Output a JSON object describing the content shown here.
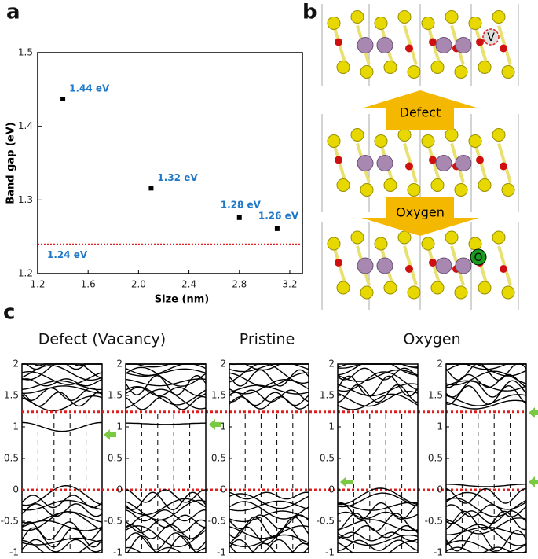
{
  "labels": {
    "a": "a",
    "b": "b",
    "c": "c"
  },
  "structures": {
    "defect": "Defect",
    "oxygen": "Oxygen",
    "vacancy": "V",
    "oxygen_atom": "O"
  },
  "band_titles": [
    "Defect (Vacancy)",
    "Pristine",
    "Oxygen"
  ],
  "band_reference_levels": [
    1.24,
    0
  ],
  "chart_data": [
    {
      "type": "scatter",
      "x_label": "Size (nm)",
      "y_label": "Band gap (eV)",
      "x": [
        1.4,
        2.1,
        2.8,
        3.1
      ],
      "values": [
        1.437,
        1.316,
        1.276,
        1.261
      ],
      "value_labels": [
        "1.44 eV",
        "1.32 eV",
        "1.28 eV",
        "1.26 eV"
      ],
      "color": "#000000",
      "reference_line": {
        "value": 1.24,
        "label": "1.24 eV",
        "color": "#e02020"
      },
      "xlim": [
        1.2,
        3.3
      ],
      "ylim": [
        1.2,
        1.5
      ],
      "xticks": [
        1.2,
        1.6,
        {
          "value": 2,
          "label": "2.0"
        },
        2.4,
        2.8,
        3.2
      ],
      "yticks": [
        1.2,
        1.3,
        1.4,
        1.5
      ]
    },
    {
      "type": "band",
      "ylim": [
        -1,
        2
      ],
      "yticks": [
        2,
        1.5,
        1,
        0.5,
        0,
        -0.5,
        -1
      ]
    },
    {
      "type": "band",
      "ylim": [
        -1,
        2
      ],
      "yticks": [
        2,
        1.5,
        1,
        0.5,
        0,
        -0.5,
        -1
      ]
    },
    {
      "type": "band",
      "ylim": [
        -1,
        2
      ],
      "yticks": [
        2,
        1.5,
        1,
        0.5,
        0,
        -0.5,
        -1
      ]
    },
    {
      "type": "band",
      "ylim": [
        -1,
        2
      ],
      "yticks": [
        2,
        1.5,
        1,
        0.5,
        0,
        -0.5,
        -1
      ]
    },
    {
      "type": "band",
      "ylim": [
        -1,
        2
      ],
      "yticks": [
        2,
        1.5,
        1,
        0.5,
        0,
        -0.5,
        -1
      ]
    }
  ]
}
